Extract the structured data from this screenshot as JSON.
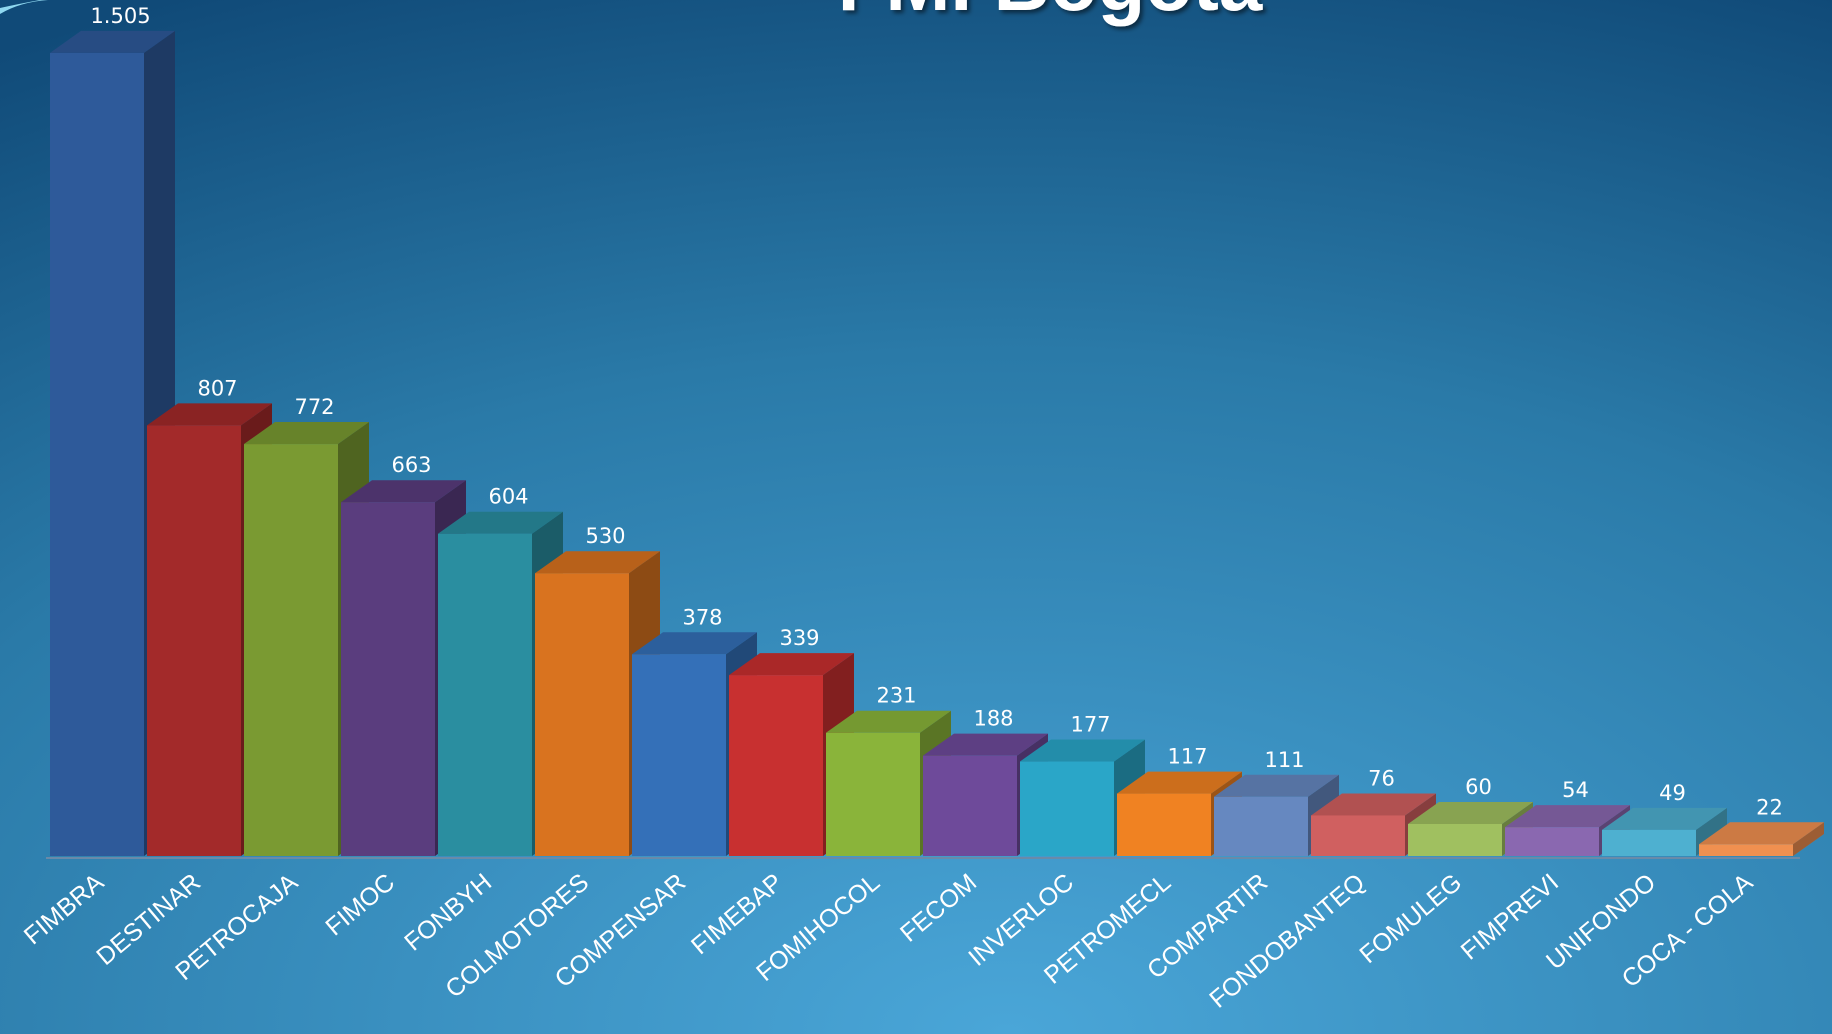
{
  "chart_data": {
    "type": "bar",
    "title": "FMI Bogota",
    "categories": [
      "FIMBRA",
      "DESTINAR",
      "PETROCAJA",
      "FIMOC",
      "FONBYH",
      "COLMOTORES",
      "COMPENSAR",
      "FIMEBAP",
      "FOMIHOCOL",
      "FECOM",
      "INVERLOC",
      "PETROMECL",
      "COMPARTIR",
      "FONDOBANTEQ",
      "FOMULEG",
      "FIMPREVI",
      "UNIFONDO",
      "COCA - COLA"
    ],
    "values": [
      1505,
      807,
      772,
      663,
      604,
      530,
      378,
      339,
      231,
      188,
      177,
      117,
      111,
      76,
      60,
      54,
      49,
      22
    ],
    "value_labels": [
      "1.505",
      "807",
      "772",
      "663",
      "604",
      "530",
      "378",
      "339",
      "231",
      "188",
      "177",
      "117",
      "111",
      "76",
      "60",
      "54",
      "49",
      "22"
    ],
    "colors": [
      "#2e5a9a",
      "#a32a2a",
      "#7a9a32",
      "#5a3d7e",
      "#2a8ea0",
      "#d9731f",
      "#3470b8",
      "#c83030",
      "#8ab43a",
      "#6e4a9a",
      "#2aa6c8",
      "#f08222",
      "#6688c0",
      "#d06060",
      "#a0c060",
      "#8a68b0",
      "#4eb0d0",
      "#f09050"
    ]
  }
}
